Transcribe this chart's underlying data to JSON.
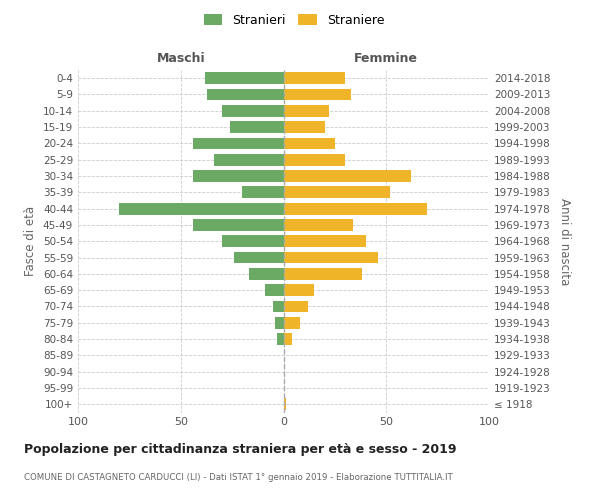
{
  "age_groups": [
    "0-4",
    "5-9",
    "10-14",
    "15-19",
    "20-24",
    "25-29",
    "30-34",
    "35-39",
    "40-44",
    "45-49",
    "50-54",
    "55-59",
    "60-64",
    "65-69",
    "70-74",
    "75-79",
    "80-84",
    "85-89",
    "90-94",
    "95-99",
    "100+"
  ],
  "birth_years": [
    "2014-2018",
    "2009-2013",
    "2004-2008",
    "1999-2003",
    "1994-1998",
    "1989-1993",
    "1984-1988",
    "1979-1983",
    "1974-1978",
    "1969-1973",
    "1964-1968",
    "1959-1963",
    "1954-1958",
    "1949-1953",
    "1944-1948",
    "1939-1943",
    "1934-1938",
    "1929-1933",
    "1924-1928",
    "1919-1923",
    "≤ 1918"
  ],
  "males": [
    38,
    37,
    30,
    26,
    44,
    34,
    44,
    20,
    80,
    44,
    30,
    24,
    17,
    9,
    5,
    4,
    3,
    0,
    0,
    0,
    0
  ],
  "females": [
    30,
    33,
    22,
    20,
    25,
    30,
    62,
    52,
    70,
    34,
    40,
    46,
    38,
    15,
    12,
    8,
    4,
    0,
    0,
    0,
    1
  ],
  "male_color": "#6aaa64",
  "female_color": "#f0b429",
  "background_color": "#ffffff",
  "grid_color": "#cccccc",
  "title": "Popolazione per cittadinanza straniera per età e sesso - 2019",
  "subtitle": "COMUNE DI CASTAGNETO CARDUCCI (LI) - Dati ISTAT 1° gennaio 2019 - Elaborazione TUTTITALIA.IT",
  "ylabel_left": "Fasce di età",
  "ylabel_right": "Anni di nascita",
  "header_left": "Maschi",
  "header_right": "Femmine",
  "legend_males": "Stranieri",
  "legend_females": "Straniere",
  "xlim": 100
}
